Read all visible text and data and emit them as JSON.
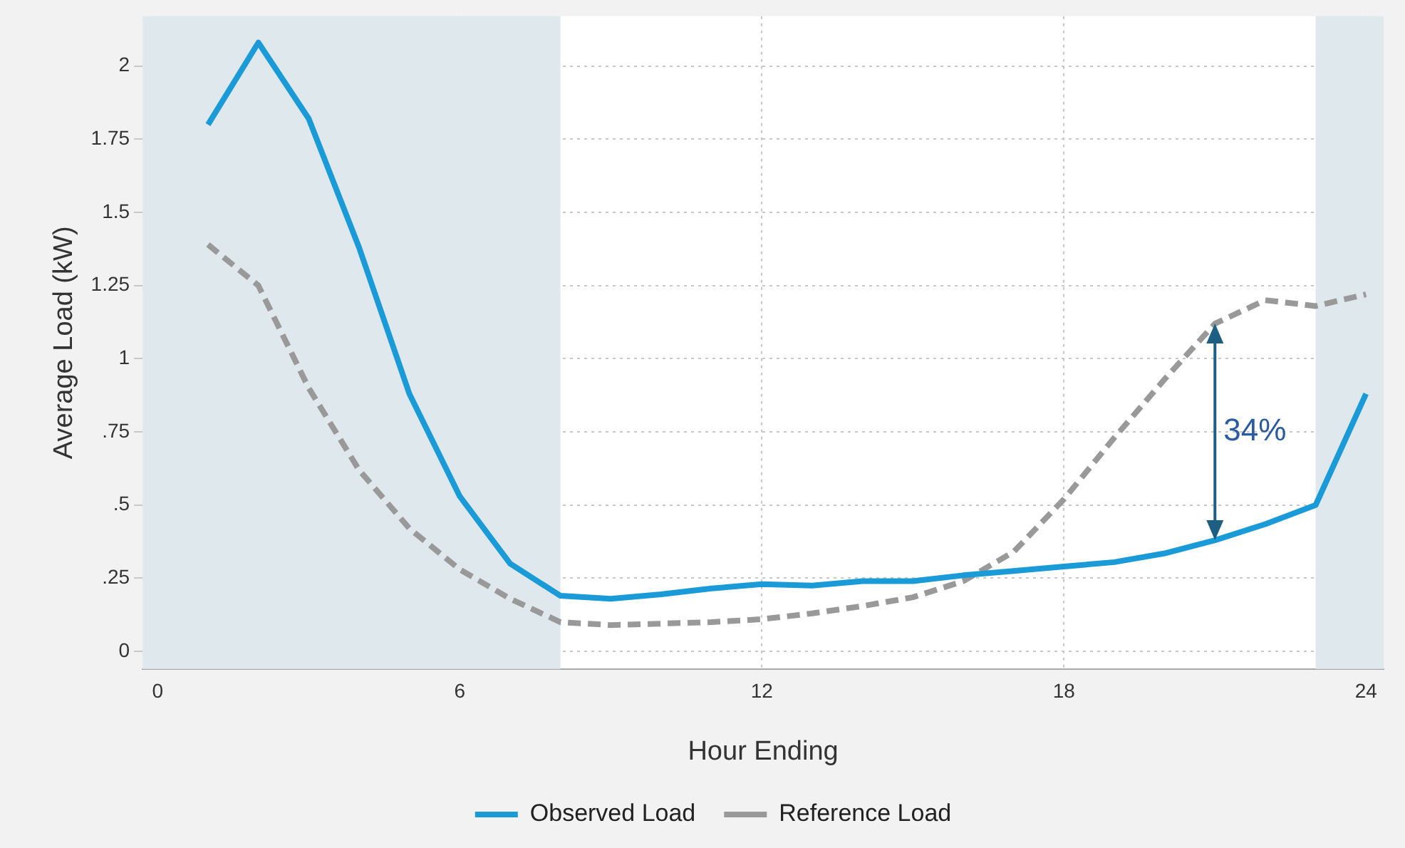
{
  "chart_data": {
    "type": "line",
    "xlabel": "Hour Ending",
    "ylabel": "Average Load (kW)",
    "x": [
      1,
      2,
      3,
      4,
      5,
      6,
      7,
      8,
      9,
      10,
      11,
      12,
      13,
      14,
      15,
      16,
      17,
      18,
      19,
      20,
      21,
      22,
      23,
      24
    ],
    "series": [
      {
        "name": "Observed Load",
        "color": "#1a9bd7",
        "line_style": "solid",
        "values": [
          1.8,
          2.08,
          1.82,
          1.38,
          0.88,
          0.53,
          0.3,
          0.19,
          0.18,
          0.195,
          0.215,
          0.23,
          0.225,
          0.24,
          0.24,
          0.26,
          0.275,
          0.29,
          0.305,
          0.335,
          0.38,
          0.435,
          0.5,
          0.88
        ]
      },
      {
        "name": "Reference Load",
        "color": "#999999",
        "line_style": "dashed",
        "values": [
          1.39,
          1.25,
          0.9,
          0.62,
          0.42,
          0.28,
          0.18,
          0.1,
          0.09,
          0.095,
          0.1,
          0.11,
          0.13,
          0.155,
          0.185,
          0.24,
          0.34,
          0.52,
          0.73,
          0.93,
          1.12,
          1.2,
          1.18,
          1.22
        ]
      }
    ],
    "xlim": [
      -0.3,
      24.35
    ],
    "xticks": [
      0,
      6,
      12,
      18,
      24
    ],
    "ylim": [
      -0.06,
      2.17
    ],
    "yticks": [
      0,
      {
        "value": 0.25,
        "label": ".25"
      },
      {
        "value": 0.5,
        "label": ".5"
      },
      {
        "value": 0.75,
        "label": ".75"
      },
      1,
      1.25,
      1.5,
      1.75,
      2
    ],
    "bands": [
      {
        "axis": "x",
        "from": -0.3,
        "to": 8,
        "color": "#dfe8ed"
      },
      {
        "axis": "x",
        "from": 23,
        "to": 24.35,
        "color": "#dfe8ed"
      }
    ],
    "annotations": [
      {
        "text": "34%",
        "x": 21,
        "y": 1.12
      }
    ],
    "grid": true,
    "legend": "bottom",
    "marker": "none"
  }
}
